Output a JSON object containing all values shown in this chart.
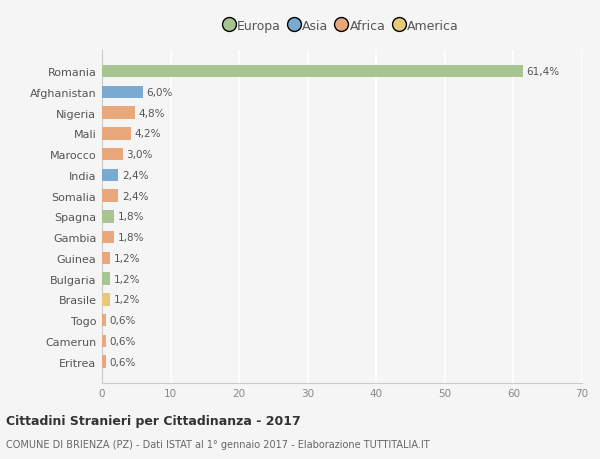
{
  "categories": [
    "Romania",
    "Afghanistan",
    "Nigeria",
    "Mali",
    "Marocco",
    "India",
    "Somalia",
    "Spagna",
    "Gambia",
    "Guinea",
    "Bulgaria",
    "Brasile",
    "Togo",
    "Camerun",
    "Eritrea"
  ],
  "values": [
    61.4,
    6.0,
    4.8,
    4.2,
    3.0,
    2.4,
    2.4,
    1.8,
    1.8,
    1.2,
    1.2,
    1.2,
    0.6,
    0.6,
    0.6
  ],
  "continents": [
    "Europa",
    "Asia",
    "Africa",
    "Africa",
    "Africa",
    "Asia",
    "Africa",
    "Europa",
    "Africa",
    "Africa",
    "Europa",
    "America",
    "Africa",
    "Africa",
    "Africa"
  ],
  "colors": {
    "Europa": "#a8c490",
    "Asia": "#7aaacf",
    "Africa": "#e8a87c",
    "America": "#e8c97a"
  },
  "labels": [
    "61,4%",
    "6,0%",
    "4,8%",
    "4,2%",
    "3,0%",
    "2,4%",
    "2,4%",
    "1,8%",
    "1,8%",
    "1,2%",
    "1,2%",
    "1,2%",
    "0,6%",
    "0,6%",
    "0,6%"
  ],
  "xlim": [
    0,
    70
  ],
  "xticks": [
    0,
    10,
    20,
    30,
    40,
    50,
    60,
    70
  ],
  "title": "Cittadini Stranieri per Cittadinanza - 2017",
  "subtitle": "COMUNE DI BRIENZA (PZ) - Dati ISTAT al 1° gennaio 2017 - Elaborazione TUTTITALIA.IT",
  "bg_color": "#f5f5f5",
  "grid_color": "#ffffff",
  "bar_height": 0.6,
  "legend_entries": [
    "Europa",
    "Asia",
    "Africa",
    "America"
  ],
  "legend_colors": [
    "#a8c490",
    "#7aaacf",
    "#e8a87c",
    "#e8c97a"
  ]
}
